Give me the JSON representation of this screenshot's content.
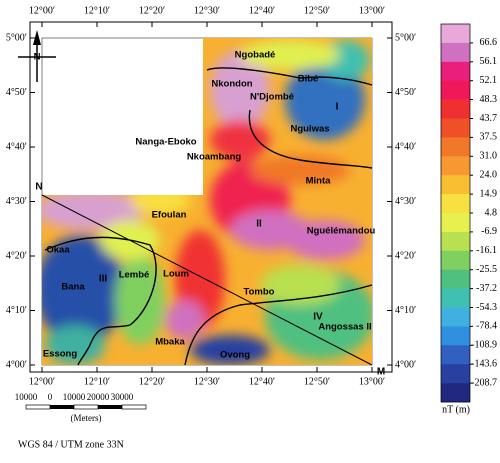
{
  "map": {
    "north": "N",
    "lon_labels": [
      "12°00′",
      "12°10′",
      "12°20′",
      "12°30′",
      "12°40′",
      "12°50′",
      "13°00′"
    ],
    "lat_labels": [
      "5°00′",
      "4°50′",
      "4°40′",
      "4°30′",
      "4°20′",
      "4°10′",
      "4°00′"
    ],
    "places": [
      "Ngobadé",
      "Nkondon",
      "Bibé",
      "N'Djombé",
      "Nguiwas",
      "Nanga-Eboko",
      "Nkoambang",
      "Minta",
      "Efoulan",
      "Nguélémandou",
      "Okaa",
      "Lembé",
      "Loum",
      "Bana",
      "Tombo",
      "Angossas II",
      "Mbaka",
      "Essong",
      "Ovong"
    ],
    "zones": [
      "I",
      "II",
      "III",
      "IV"
    ],
    "profile": [
      "N",
      "M"
    ]
  },
  "colorbar": {
    "labels": [
      "66.6",
      "56.1",
      "52.1",
      "48.3",
      "43.7",
      "37.5",
      "31.0",
      "24.0",
      "14.9",
      "4.8",
      "-6.9",
      "-16.1",
      "-25.5",
      "-37.2",
      "-54.3",
      "-78.4",
      "-108.9",
      "-143.6",
      "-208.7"
    ],
    "colors": [
      "#e8a8d8",
      "#d070c0",
      "#e8207c",
      "#f01858",
      "#f03030",
      "#f05028",
      "#f07828",
      "#f89830",
      "#f8c030",
      "#f8e040",
      "#e8f050",
      "#b8e050",
      "#80d060",
      "#50c080",
      "#40c0b0",
      "#40b0e0",
      "#3090e0",
      "#3060c0",
      "#2840a0",
      "#202880"
    ],
    "unit": "nT (m)"
  },
  "scale": {
    "labels": [
      "10000",
      "0",
      "10000",
      "20000",
      "30000"
    ],
    "unit": "(Meters)"
  },
  "projection": "WGS 84 / UTM zone 33N"
}
